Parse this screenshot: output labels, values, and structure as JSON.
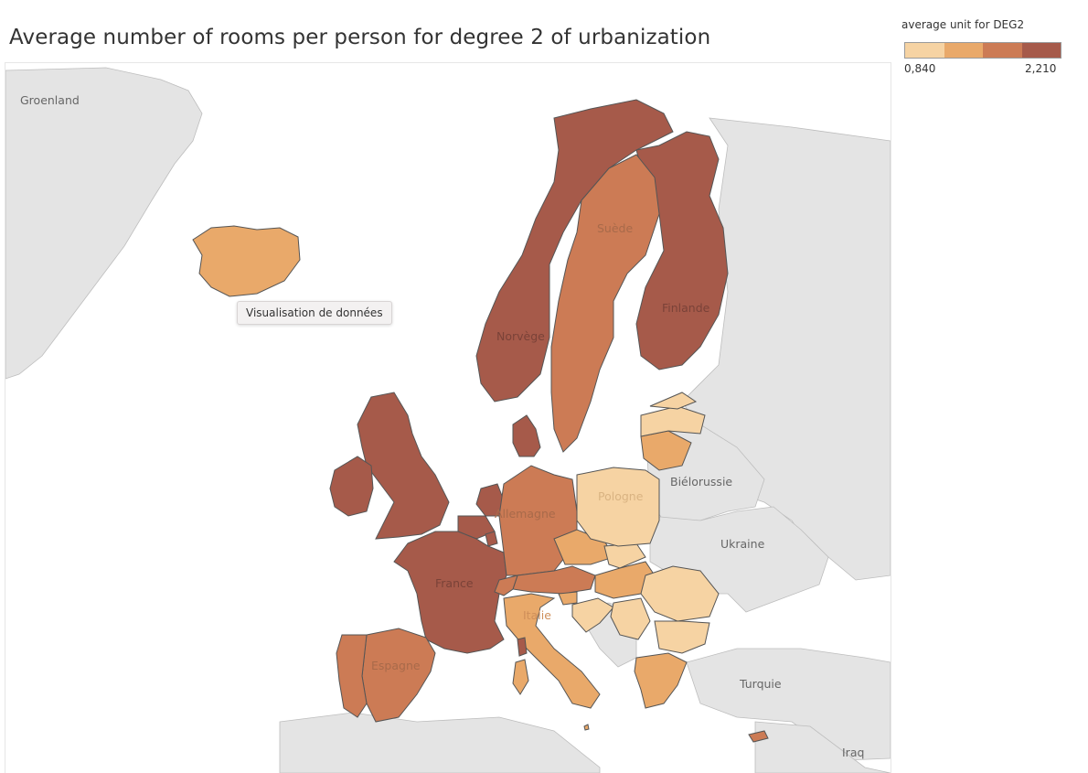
{
  "title": "Average number of rooms per person for degree 2 of urbanization",
  "legend": {
    "title": "average unit for DEG2",
    "min_label": "0,840",
    "max_label": "2,210",
    "min": 0.84,
    "max": 2.21,
    "steps": [
      "#f6d3a3",
      "#e9a96a",
      "#cc7b55",
      "#a65a4a"
    ]
  },
  "tooltip": "Visualisation de données",
  "colors": {
    "land": "#e4e4e4",
    "sea": "#ffffff",
    "border": "#555555",
    "noncountry_border": "#bdbdbd"
  },
  "map_labels": {
    "groenland": "Groenland",
    "suede": "Suède",
    "finlande": "Finlande",
    "norvege": "Norvège",
    "pologne": "Pologne",
    "bielorussie": "Biélorussie",
    "allemagne": "Allemagne",
    "ukraine": "Ukraine",
    "france": "France",
    "italie": "Italie",
    "espagne": "Espagne",
    "turquie": "Turquie",
    "irak": "Iraq"
  },
  "regions": [
    {
      "name": "Norvège",
      "class": 4
    },
    {
      "name": "Finlande",
      "class": 4
    },
    {
      "name": "Suède",
      "class": 3
    },
    {
      "name": "Islande",
      "class": 2
    },
    {
      "name": "Royaume-Uni",
      "class": 4
    },
    {
      "name": "Irlande",
      "class": 4
    },
    {
      "name": "Danemark",
      "class": 4
    },
    {
      "name": "Pays-Bas",
      "class": 4
    },
    {
      "name": "Belgique",
      "class": 4
    },
    {
      "name": "Luxembourg",
      "class": 4
    },
    {
      "name": "France",
      "class": 4
    },
    {
      "name": "Allemagne",
      "class": 3
    },
    {
      "name": "Autriche",
      "class": 3
    },
    {
      "name": "Suisse",
      "class": 3
    },
    {
      "name": "Espagne",
      "class": 3
    },
    {
      "name": "Portugal",
      "class": 3
    },
    {
      "name": "Italie",
      "class": 2
    },
    {
      "name": "Slovénie",
      "class": 2
    },
    {
      "name": "Tchéquie",
      "class": 2
    },
    {
      "name": "Slovaquie",
      "class": 1
    },
    {
      "name": "Hongrie",
      "class": 2
    },
    {
      "name": "Pologne",
      "class": 1
    },
    {
      "name": "Lituanie",
      "class": 2
    },
    {
      "name": "Lettonie",
      "class": 1
    },
    {
      "name": "Estonie",
      "class": 1
    },
    {
      "name": "Roumanie",
      "class": 1
    },
    {
      "name": "Bulgarie",
      "class": 1
    },
    {
      "name": "Croatie",
      "class": 1
    },
    {
      "name": "Serbie",
      "class": 1
    },
    {
      "name": "Grèce",
      "class": 2
    },
    {
      "name": "Malte",
      "class": 2
    },
    {
      "name": "Chypre",
      "class": 3
    },
    {
      "name": "Sardaigne",
      "class": 2
    },
    {
      "name": "Corse",
      "class": 4
    }
  ]
}
